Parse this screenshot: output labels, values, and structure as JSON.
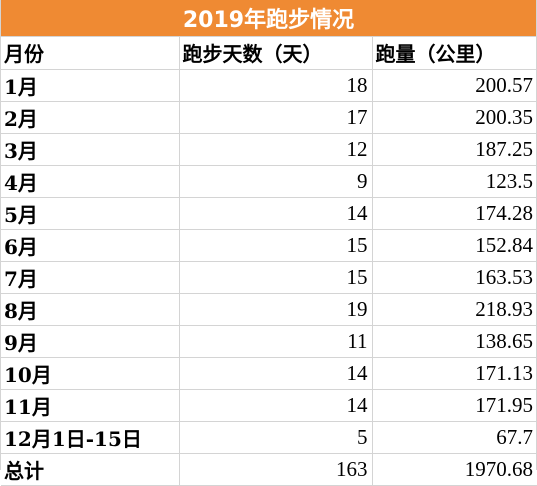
{
  "title": "2019年跑步情况",
  "headers": [
    "月份",
    "跑步天数（天）",
    "跑量（公里）"
  ],
  "rows": [
    {
      "month": "1月",
      "days": "18",
      "distance": "200.57"
    },
    {
      "month": "2月",
      "days": "17",
      "distance": "200.35"
    },
    {
      "month": "3月",
      "days": "12",
      "distance": "187.25"
    },
    {
      "month": "4月",
      "days": "9",
      "distance": "123.5"
    },
    {
      "month": "5月",
      "days": "14",
      "distance": "174.28"
    },
    {
      "month": "6月",
      "days": "15",
      "distance": "152.84"
    },
    {
      "month": "7月",
      "days": "15",
      "distance": "163.53"
    },
    {
      "month": "8月",
      "days": "19",
      "distance": "218.93"
    },
    {
      "month": "9月",
      "days": "11",
      "distance": "138.65"
    },
    {
      "month": "10月",
      "days": "14",
      "distance": "171.13"
    },
    {
      "month": "11月",
      "days": "14",
      "distance": "171.95"
    },
    {
      "month": "12月1日-15日",
      "days": "5",
      "distance": "67.7"
    }
  ],
  "total": {
    "label": "总计",
    "days": "163",
    "distance": "1970.68"
  },
  "colors": {
    "title_bg": "#ef8a33",
    "title_fg": "#ffffff",
    "grid": "#d4d4d4"
  }
}
